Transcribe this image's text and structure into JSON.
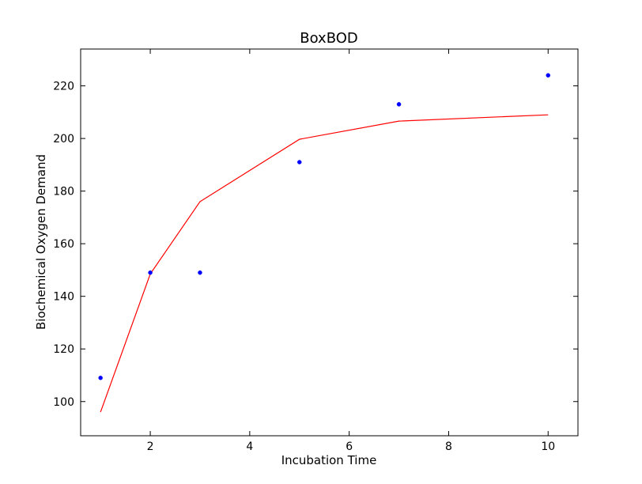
{
  "chart_data": {
    "type": "scatter",
    "title": "BoxBOD",
    "xlabel": "Incubation Time",
    "ylabel": "Biochemical Oxygen Demand",
    "xlim": [
      0.6,
      10.6
    ],
    "ylim": [
      87,
      234
    ],
    "xticks": [
      2,
      4,
      6,
      8,
      10
    ],
    "yticks": [
      100,
      120,
      140,
      160,
      180,
      200,
      220
    ],
    "grid": false,
    "series": [
      {
        "kind": "scatter",
        "color": "#0000ff",
        "x": [
          1,
          2,
          3,
          5,
          7,
          10
        ],
        "y": [
          109,
          149,
          149,
          191,
          213,
          224
        ]
      },
      {
        "kind": "line",
        "color": "#ff0000",
        "x": [
          1,
          2,
          3,
          5,
          7,
          10
        ],
        "y": [
          96,
          148.5,
          176,
          199.7,
          206.6,
          209
        ]
      }
    ]
  }
}
